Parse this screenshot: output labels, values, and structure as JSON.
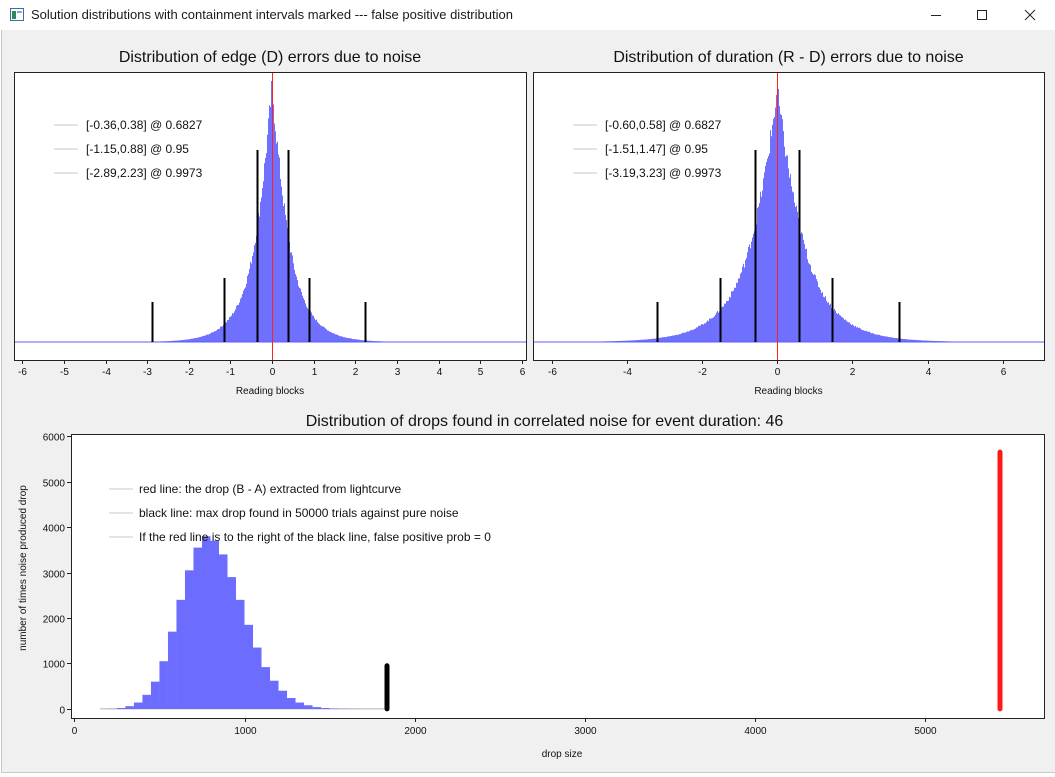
{
  "window": {
    "title": "Solution distributions with containment intervals marked --- false positive distribution",
    "minimize_icon": "minimize-icon",
    "maximize_icon": "maximize-icon",
    "close_icon": "close-icon"
  },
  "chart_data": [
    {
      "type": "histogram",
      "title": "Distribution of edge (D) errors due to noise",
      "xlabel": "Reading blocks",
      "ylabel": "",
      "xlim": [
        -6.2,
        6.1
      ],
      "xticks": [
        -6,
        -5,
        -4,
        -3,
        -2,
        -1,
        0,
        1,
        2,
        3,
        4,
        5,
        6
      ],
      "yticks_shown": false,
      "distribution": {
        "center": 0.0,
        "scale": 0.45,
        "shape": "laplace-like",
        "color": "#5c5cff"
      },
      "red_line_x": 0.0,
      "interval_lines": [
        {
          "x": -0.36,
          "level": 0.6827,
          "height": "tall"
        },
        {
          "x": 0.38,
          "level": 0.6827,
          "height": "tall"
        },
        {
          "x": -1.15,
          "level": 0.95,
          "height": "medium"
        },
        {
          "x": 0.88,
          "level": 0.95,
          "height": "medium"
        },
        {
          "x": -2.89,
          "level": 0.9973,
          "height": "short"
        },
        {
          "x": 2.23,
          "level": 0.9973,
          "height": "short"
        }
      ],
      "legend": [
        "[-0.36,0.38] @ 0.6827",
        "[-1.15,0.88] @ 0.95",
        "[-2.89,2.23] @ 0.9973"
      ]
    },
    {
      "type": "histogram",
      "title": "Distribution of duration (R - D) errors due to noise",
      "xlabel": "Reading blocks",
      "ylabel": "",
      "xlim": [
        -6.5,
        7.1
      ],
      "xticks": [
        -6,
        -4,
        -2,
        0,
        2,
        4,
        6
      ],
      "yticks_shown": false,
      "distribution": {
        "center": 0.0,
        "scale": 0.78,
        "shape": "laplace-like",
        "color": "#5c5cff"
      },
      "red_line_x": 0.0,
      "interval_lines": [
        {
          "x": -0.6,
          "level": 0.6827,
          "height": "tall"
        },
        {
          "x": 0.58,
          "level": 0.6827,
          "height": "tall"
        },
        {
          "x": -1.51,
          "level": 0.95,
          "height": "medium"
        },
        {
          "x": 1.47,
          "level": 0.95,
          "height": "medium"
        },
        {
          "x": -3.19,
          "level": 0.9973,
          "height": "short"
        },
        {
          "x": 3.23,
          "level": 0.9973,
          "height": "short"
        }
      ],
      "legend": [
        "[-0.60,0.58] @ 0.6827",
        "[-1.51,1.47] @ 0.95",
        "[-3.19,3.23] @ 0.9973"
      ]
    },
    {
      "type": "bar",
      "title": "Distribution of drops found in correlated noise for event duration: 46",
      "xlabel": "drop size",
      "ylabel": "number of times noise produced drop",
      "xlim": [
        -20,
        5700
      ],
      "ylim": [
        -200,
        6050
      ],
      "xticks": [
        0,
        1000,
        2000,
        3000,
        4000,
        5000
      ],
      "yticks": [
        0,
        1000,
        2000,
        3000,
        4000,
        5000,
        6000
      ],
      "bin_width": 50,
      "categories": [
        175,
        225,
        275,
        325,
        375,
        425,
        475,
        525,
        575,
        625,
        675,
        725,
        775,
        825,
        875,
        925,
        975,
        1025,
        1075,
        1125,
        1175,
        1225,
        1275,
        1325,
        1375,
        1425,
        1475,
        1525,
        1575,
        1625,
        1675,
        1725,
        1775,
        1825
      ],
      "values": [
        0,
        5,
        20,
        60,
        140,
        310,
        600,
        1050,
        1700,
        2400,
        3050,
        3550,
        3800,
        3700,
        3400,
        2900,
        2400,
        1850,
        1350,
        920,
        620,
        400,
        240,
        140,
        80,
        40,
        20,
        10,
        5,
        2,
        1,
        0,
        0,
        0
      ],
      "black_line": {
        "x": 1840,
        "y_top": 950,
        "meaning": "max drop found in 50000 trials against pure noise"
      },
      "red_line": {
        "x": 5440,
        "y_top": 5650,
        "meaning": "the drop (B - A) extracted from lightcurve"
      },
      "legend": [
        "red line: the drop (B - A) extracted from lightcurve",
        "black line: max drop found in 50000 trials against pure noise",
        "If the red line is to the right of the black line, false positive prob = 0"
      ]
    }
  ]
}
